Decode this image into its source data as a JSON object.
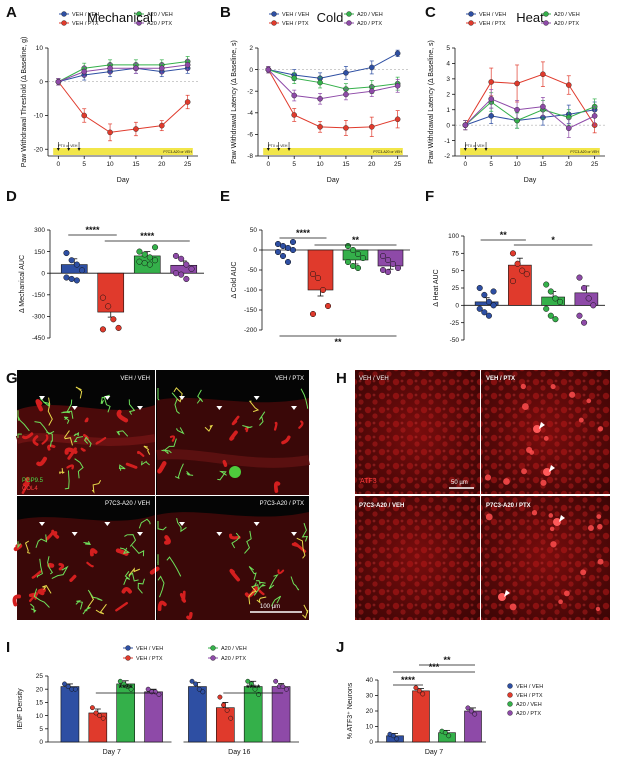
{
  "colors": {
    "VEH / VEH": "#2e4fa3",
    "VEH / PTX": "#e03a2c",
    "A20 / VEH": "#34b04a",
    "A20 / PTX": "#8e4aa8",
    "treatment_bar": "#f2e64a"
  },
  "legend": {
    "main": [
      "VEH / VEH",
      "A20 / VEH",
      "VEH / PTX",
      "A20 / PTX"
    ]
  },
  "panels": {
    "A": {
      "label": "A",
      "title": "Mechanical"
    },
    "B": {
      "label": "B",
      "title": "Cold"
    },
    "C": {
      "label": "C",
      "title": "Heat"
    },
    "D": {
      "label": "D"
    },
    "E": {
      "label": "E"
    },
    "F": {
      "label": "F"
    },
    "G": {
      "label": "G"
    },
    "H": {
      "label": "H"
    },
    "I": {
      "label": "I"
    },
    "J": {
      "label": "J"
    }
  },
  "time_course": {
    "treatment_left": "PTX or VEH",
    "treatment_right": "P7C3-A20 or VEH",
    "xlabel": "Day"
  },
  "chart_data": [
    {
      "panel": "A",
      "type": "line",
      "title": "Mechanical",
      "xlabel": "Day",
      "ylabel": "Paw Withdrawal Threshold (Δ Baseline, g)",
      "x": [
        0,
        5,
        10,
        15,
        20,
        25
      ],
      "xlim": [
        -2,
        27
      ],
      "ylim": [
        -22,
        10
      ],
      "yticks": [
        -20,
        -10,
        0,
        10
      ],
      "series": [
        {
          "name": "VEH / VEH",
          "values": [
            0,
            2,
            3,
            4,
            3,
            4
          ],
          "err": [
            1,
            1.5,
            1.5,
            1.5,
            1.5,
            1.5
          ]
        },
        {
          "name": "VEH / PTX",
          "values": [
            0,
            -10,
            -15,
            -14,
            -13,
            -6
          ],
          "err": [
            1,
            2,
            2.5,
            2,
            1.5,
            2
          ]
        },
        {
          "name": "A20 / VEH",
          "values": [
            0,
            4,
            5,
            5,
            5,
            6
          ],
          "err": [
            1,
            1.5,
            1.5,
            1.5,
            1.5,
            1.5
          ]
        },
        {
          "name": "A20 / PTX",
          "values": [
            0,
            3,
            4,
            4,
            4,
            5
          ],
          "err": [
            1,
            1.5,
            1.5,
            1.5,
            1.5,
            1.5
          ]
        }
      ]
    },
    {
      "panel": "B",
      "type": "line",
      "title": "Cold",
      "xlabel": "Day",
      "ylabel": "Paw Withdrawal Latency (Δ Baseline, s)",
      "x": [
        0,
        5,
        10,
        15,
        20,
        25
      ],
      "xlim": [
        -2,
        27
      ],
      "ylim": [
        -8,
        2
      ],
      "yticks": [
        -8,
        -6,
        -4,
        -2,
        0,
        2
      ],
      "series": [
        {
          "name": "VEH / VEH",
          "values": [
            0,
            -0.5,
            -0.8,
            -0.3,
            0.2,
            1.5
          ],
          "err": [
            0.3,
            0.5,
            0.5,
            0.6,
            0.6,
            0.3
          ]
        },
        {
          "name": "VEH / PTX",
          "values": [
            0,
            -4.2,
            -5.3,
            -5.4,
            -5.3,
            -4.6
          ],
          "err": [
            0.3,
            0.6,
            0.5,
            0.7,
            0.9,
            0.8
          ]
        },
        {
          "name": "A20 / VEH",
          "values": [
            0,
            -0.8,
            -1.2,
            -1.8,
            -1.6,
            -1.3
          ],
          "err": [
            0.3,
            0.5,
            0.5,
            0.5,
            0.6,
            0.6
          ]
        },
        {
          "name": "A20 / PTX",
          "values": [
            0,
            -2.4,
            -2.7,
            -2.3,
            -2.0,
            -1.5
          ],
          "err": [
            0.3,
            0.5,
            0.5,
            0.5,
            0.5,
            0.6
          ]
        }
      ]
    },
    {
      "panel": "C",
      "type": "line",
      "title": "Heat",
      "xlabel": "Day",
      "ylabel": "Paw Withdrawal Latency (Δ Baseline, s)",
      "x": [
        0,
        5,
        10,
        15,
        20,
        25
      ],
      "xlim": [
        -2,
        27
      ],
      "ylim": [
        -2,
        5
      ],
      "yticks": [
        -2,
        -1,
        0,
        1,
        2,
        3,
        4,
        5
      ],
      "series": [
        {
          "name": "VEH / VEH",
          "values": [
            0,
            0.6,
            0.3,
            0.5,
            0.7,
            1.0
          ],
          "err": [
            0.3,
            0.5,
            0.5,
            0.5,
            0.6,
            0.5
          ]
        },
        {
          "name": "VEH / PTX",
          "values": [
            0,
            2.8,
            2.7,
            3.3,
            2.6,
            0
          ],
          "err": [
            0.3,
            0.9,
            1.2,
            0.8,
            0.6,
            0.5
          ]
        },
        {
          "name": "A20 / VEH",
          "values": [
            0,
            1.5,
            0.3,
            1.0,
            0.5,
            1.2
          ],
          "err": [
            0.3,
            0.6,
            0.5,
            0.6,
            0.5,
            0.5
          ]
        },
        {
          "name": "A20 / PTX",
          "values": [
            0,
            1.7,
            1.0,
            1.2,
            -0.2,
            0.6
          ],
          "err": [
            0.3,
            0.6,
            0.6,
            0.6,
            0.6,
            0.6
          ]
        }
      ]
    },
    {
      "panel": "D",
      "type": "bar",
      "ylabel": "Δ Mechanical AUC",
      "categories": [
        "VEH / VEH",
        "VEH / PTX",
        "A20 / VEH",
        "A20 / PTX"
      ],
      "values": [
        60,
        -270,
        120,
        55
      ],
      "err": [
        40,
        35,
        30,
        30
      ],
      "points": [
        [
          140,
          90,
          60,
          20,
          -30,
          -40,
          -50
        ],
        [
          -170,
          -230,
          -320,
          -380,
          -390
        ],
        [
          150,
          130,
          110,
          90,
          80,
          70,
          60,
          180
        ],
        [
          120,
          100,
          60,
          30,
          0,
          -10,
          -40
        ]
      ],
      "ylim": [
        -450,
        300
      ],
      "yticks": [
        -450,
        -300,
        -150,
        0,
        150,
        300
      ],
      "significance": [
        {
          "pair": [
            0,
            1
          ],
          "label": "****"
        },
        {
          "pair": [
            1,
            3
          ],
          "label": "****"
        }
      ]
    },
    {
      "panel": "E",
      "type": "bar",
      "ylabel": "Δ Cold AUC",
      "categories": [
        "VEH / VEH",
        "VEH / PTX",
        "A20 / VEH",
        "A20 / PTX"
      ],
      "values": [
        0,
        -100,
        -25,
        -40
      ],
      "err": [
        10,
        15,
        10,
        8
      ],
      "points": [
        [
          15,
          10,
          5,
          0,
          -5,
          -15,
          -30,
          20
        ],
        [
          -60,
          -70,
          -100,
          -140,
          -160
        ],
        [
          10,
          0,
          -10,
          -20,
          -30,
          -40,
          -45
        ],
        [
          -15,
          -25,
          -35,
          -45,
          -50,
          -55
        ]
      ],
      "ylim": [
        -200,
        50
      ],
      "yticks": [
        -200,
        -150,
        -100,
        -50,
        0,
        50
      ],
      "significance": [
        {
          "pair": [
            0,
            1
          ],
          "label": "****"
        },
        {
          "pair": [
            1,
            3
          ],
          "label": "**"
        },
        {
          "pair": [
            0,
            3
          ],
          "label": "**",
          "below": true
        }
      ]
    },
    {
      "panel": "F",
      "type": "bar",
      "ylabel": "Δ Heat AUC",
      "categories": [
        "VEH / VEH",
        "VEH / PTX",
        "A20 / VEH",
        "A20 / PTX"
      ],
      "values": [
        5,
        58,
        12,
        18
      ],
      "err": [
        6,
        10,
        8,
        10
      ],
      "points": [
        [
          25,
          15,
          5,
          0,
          -5,
          -10,
          -15,
          20
        ],
        [
          75,
          60,
          50,
          45,
          35
        ],
        [
          30,
          20,
          10,
          5,
          -5,
          -15,
          -20
        ],
        [
          40,
          25,
          10,
          0,
          -15,
          -25
        ]
      ],
      "ylim": [
        -50,
        100
      ],
      "yticks": [
        -50,
        -25,
        0,
        25,
        50,
        75,
        100
      ],
      "significance": [
        {
          "pair": [
            0,
            1
          ],
          "label": "**"
        },
        {
          "pair": [
            1,
            3
          ],
          "label": "*"
        }
      ]
    },
    {
      "panel": "I",
      "type": "bar",
      "ylabel": "IENF Density",
      "groups": [
        {
          "xlabel": "Day 7",
          "values": [
            21,
            11,
            22,
            19
          ],
          "err": [
            1,
            1.5,
            1.2,
            1
          ],
          "points": [
            [
              22,
              21,
              20,
              20
            ],
            [
              13,
              11,
              10,
              9
            ],
            [
              23,
              22,
              21,
              20
            ],
            [
              20,
              19,
              19,
              18
            ]
          ]
        },
        {
          "xlabel": "Day 16",
          "values": [
            21,
            13,
            21,
            21
          ],
          "err": [
            1.5,
            2,
            2,
            1.2
          ],
          "points": [
            [
              23,
              22,
              20,
              19
            ],
            [
              17,
              14,
              12,
              9
            ],
            [
              23,
              22,
              20,
              18
            ],
            [
              23,
              21,
              21,
              20
            ]
          ]
        }
      ],
      "categories": [
        "VEH / VEH",
        "VEH / PTX",
        "A20 / VEH",
        "A20 / PTX"
      ],
      "ylim": [
        0,
        25
      ],
      "yticks": [
        0,
        5,
        10,
        15,
        20,
        25
      ],
      "significance": [
        {
          "group": 0,
          "pair": [
            1,
            3
          ],
          "label": "****"
        },
        {
          "group": 1,
          "pair": [
            1,
            3
          ],
          "label": "****"
        }
      ]
    },
    {
      "panel": "J",
      "type": "bar",
      "ylabel": "% ATF3⁺ Neurons",
      "xlabel": "Day 7",
      "categories": [
        "VEH / VEH",
        "VEH / PTX",
        "A20 / VEH",
        "A20 / PTX"
      ],
      "values": [
        4,
        33,
        6,
        20
      ],
      "err": [
        1.5,
        1.5,
        1.5,
        2
      ],
      "points": [
        [
          5,
          4,
          2
        ],
        [
          35,
          33,
          31
        ],
        [
          7,
          6,
          4
        ],
        [
          22,
          20,
          18
        ]
      ],
      "ylim": [
        0,
        40
      ],
      "yticks": [
        0,
        10,
        20,
        30,
        40
      ],
      "significance": [
        {
          "pair": [
            0,
            1
          ],
          "label": "****"
        },
        {
          "pair": [
            0,
            3
          ],
          "label": "***"
        },
        {
          "pair": [
            1,
            3
          ],
          "label": "**"
        }
      ]
    }
  ],
  "micrographs": {
    "G": {
      "tiles": [
        "VEH / VEH",
        "VEH / PTX",
        "P7C3-A20 / VEH",
        "P7C3-A20 / PTX"
      ],
      "stain1": "PGP9.5",
      "stain2": "COL4",
      "scale": "100 µm"
    },
    "H": {
      "tiles": [
        "VEH / VEH",
        "VEH / PTX",
        "P7C3-A20 / VEH",
        "P7C3-A20 / PTX"
      ],
      "stain": "ATF3",
      "scale": "50 µm"
    }
  }
}
